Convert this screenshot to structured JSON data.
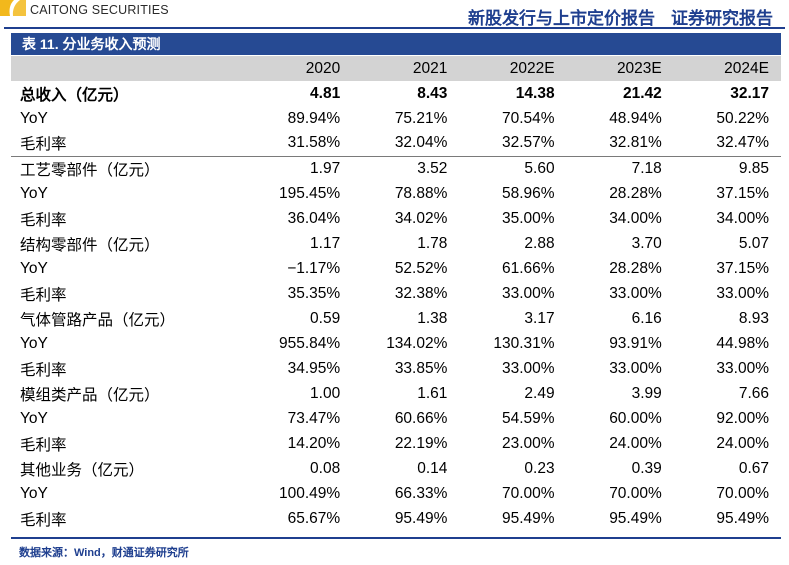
{
  "header": {
    "brand": "CAITONG SECURITIES",
    "report_type": "新股发行与上市定价报告",
    "research_label": "证券研究报告"
  },
  "table": {
    "caption": "表 11. 分业务收入预测",
    "columns": [
      "2020",
      "2021",
      "2022E",
      "2023E",
      "2024E"
    ],
    "rows": [
      {
        "label": "总收入（亿元）",
        "values": [
          "4.81",
          "8.43",
          "14.38",
          "21.42",
          "32.17"
        ],
        "bold": true,
        "group_start": false
      },
      {
        "label": "YoY",
        "values": [
          "89.94%",
          "75.21%",
          "70.54%",
          "48.94%",
          "50.22%"
        ],
        "bold": false,
        "group_start": false
      },
      {
        "label": "毛利率",
        "values": [
          "31.58%",
          "32.04%",
          "32.57%",
          "32.81%",
          "32.47%"
        ],
        "bold": false,
        "group_start": false
      },
      {
        "label": "工艺零部件（亿元）",
        "values": [
          "1.97",
          "3.52",
          "5.60",
          "7.18",
          "9.85"
        ],
        "bold": false,
        "group_start": true
      },
      {
        "label": "YoY",
        "values": [
          "195.45%",
          "78.88%",
          "58.96%",
          "28.28%",
          "37.15%"
        ],
        "bold": false,
        "group_start": false
      },
      {
        "label": "毛利率",
        "values": [
          "36.04%",
          "34.02%",
          "35.00%",
          "34.00%",
          "34.00%"
        ],
        "bold": false,
        "group_start": false
      },
      {
        "label": "结构零部件（亿元）",
        "values": [
          "1.17",
          "1.78",
          "2.88",
          "3.70",
          "5.07"
        ],
        "bold": false,
        "group_start": false
      },
      {
        "label": "YoY",
        "values": [
          "−1.17%",
          "52.52%",
          "61.66%",
          "28.28%",
          "37.15%"
        ],
        "bold": false,
        "group_start": false
      },
      {
        "label": "毛利率",
        "values": [
          "35.35%",
          "32.38%",
          "33.00%",
          "33.00%",
          "33.00%"
        ],
        "bold": false,
        "group_start": false
      },
      {
        "label": "气体管路产品（亿元）",
        "values": [
          "0.59",
          "1.38",
          "3.17",
          "6.16",
          "8.93"
        ],
        "bold": false,
        "group_start": false
      },
      {
        "label": "YoY",
        "values": [
          "955.84%",
          "134.02%",
          "130.31%",
          "93.91%",
          "44.98%"
        ],
        "bold": false,
        "group_start": false
      },
      {
        "label": "毛利率",
        "values": [
          "34.95%",
          "33.85%",
          "33.00%",
          "33.00%",
          "33.00%"
        ],
        "bold": false,
        "group_start": false
      },
      {
        "label": "模组类产品（亿元）",
        "values": [
          "1.00",
          "1.61",
          "2.49",
          "3.99",
          "7.66"
        ],
        "bold": false,
        "group_start": false
      },
      {
        "label": "YoY",
        "values": [
          "73.47%",
          "60.66%",
          "54.59%",
          "60.00%",
          "92.00%"
        ],
        "bold": false,
        "group_start": false
      },
      {
        "label": "毛利率",
        "values": [
          "14.20%",
          "22.19%",
          "23.00%",
          "24.00%",
          "24.00%"
        ],
        "bold": false,
        "group_start": false
      },
      {
        "label": "其他业务（亿元）",
        "values": [
          "0.08",
          "0.14",
          "0.23",
          "0.39",
          "0.67"
        ],
        "bold": false,
        "group_start": false
      },
      {
        "label": "YoY",
        "values": [
          "100.49%",
          "66.33%",
          "70.00%",
          "70.00%",
          "70.00%"
        ],
        "bold": false,
        "group_start": false
      },
      {
        "label": "毛利率",
        "values": [
          "65.67%",
          "95.49%",
          "95.49%",
          "95.49%",
          "95.49%"
        ],
        "bold": false,
        "group_start": false
      }
    ]
  },
  "source_note": "数据来源：Wind，财通证券研究所",
  "colors": {
    "brand_blue": "#1f3f8f",
    "bar_blue": "#264a93",
    "header_grey": "#d3d3d3",
    "logo_yellow": "#f2b81c"
  }
}
